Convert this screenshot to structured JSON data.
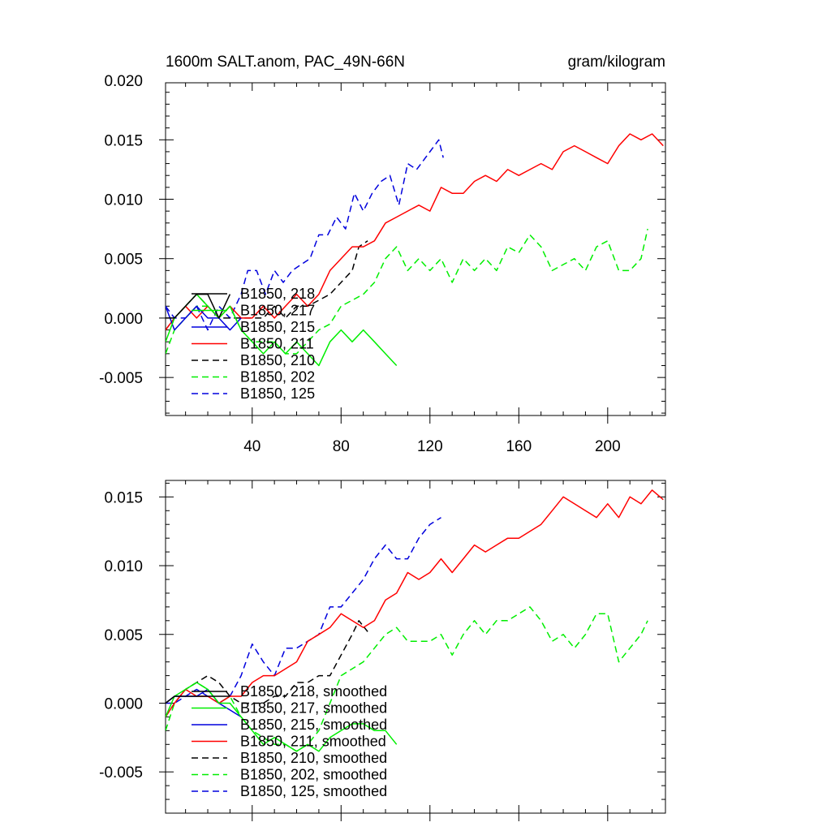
{
  "header": {
    "title_left": "1600m SALT.anom, PAC_49N-66N",
    "title_right": "gram/kilogram"
  },
  "styles": {
    "B1850, 218": {
      "color": "#000000",
      "dash": "solid"
    },
    "B1850, 217": {
      "color": "#00ee00",
      "dash": "solid"
    },
    "B1850, 215": {
      "color": "#0000dd",
      "dash": "solid"
    },
    "B1850, 211": {
      "color": "#ff0000",
      "dash": "solid"
    },
    "B1850, 210": {
      "color": "#000000",
      "dash": "dashed"
    },
    "B1850, 202": {
      "color": "#00ee00",
      "dash": "dashed"
    },
    "B1850, 125": {
      "color": "#0000dd",
      "dash": "dashed"
    }
  },
  "chart_data": [
    {
      "type": "line",
      "title": "1600m SALT.anom, PAC_49N-66N",
      "units": "gram/kilogram",
      "xlim": [
        1,
        226
      ],
      "ylim": [
        -0.0082,
        0.0198
      ],
      "xticks": [
        40,
        80,
        120,
        160,
        200
      ],
      "xtick_labels": [
        "40",
        "80",
        "120",
        "160",
        "200"
      ],
      "yticks": [
        -0.005,
        0.0,
        0.005,
        0.01,
        0.015,
        0.02
      ],
      "ytick_labels": [
        "-0.005",
        "0.000",
        "0.005",
        "0.010",
        "0.015",
        "0.020"
      ],
      "legend_labels": [
        "B1850, 218",
        "B1850, 217",
        "B1850, 215",
        "B1850, 211",
        "B1850, 210",
        "B1850, 202",
        "B1850, 125"
      ],
      "series": [
        {
          "name": "B1850, 125",
          "x": [
            1,
            5,
            10,
            15,
            20,
            25,
            30,
            35,
            38,
            42,
            46,
            50,
            54,
            58,
            62,
            66,
            70,
            74,
            78,
            82,
            86,
            90,
            94,
            98,
            102,
            106,
            110,
            114,
            118,
            122,
            124,
            126
          ],
          "values": [
            0.001,
            0.0,
            0.0,
            0.001,
            -0.001,
            0.001,
            0.0,
            0.002,
            0.004,
            0.004,
            0.002,
            0.004,
            0.003,
            0.004,
            0.0045,
            0.005,
            0.007,
            0.007,
            0.0085,
            0.0075,
            0.0105,
            0.009,
            0.0105,
            0.0115,
            0.012,
            0.0095,
            0.013,
            0.0125,
            0.0135,
            0.0145,
            0.015,
            0.0135
          ]
        },
        {
          "name": "B1850, 202",
          "x": [
            1,
            5,
            10,
            15,
            20,
            25,
            30,
            35,
            40,
            45,
            50,
            55,
            60,
            65,
            70,
            75,
            80,
            85,
            90,
            95,
            100,
            105,
            110,
            115,
            120,
            125,
            130,
            135,
            140,
            145,
            150,
            155,
            160,
            165,
            170,
            175,
            180,
            185,
            190,
            195,
            200,
            205,
            210,
            215,
            218
          ],
          "values": [
            -0.003,
            -0.001,
            0.0,
            0.001,
            0.001,
            0.0,
            0.001,
            -0.001,
            -0.002,
            -0.002,
            -0.002,
            -0.003,
            -0.003,
            -0.002,
            -0.001,
            -0.0005,
            0.001,
            0.0015,
            0.002,
            0.003,
            0.005,
            0.006,
            0.004,
            0.005,
            0.004,
            0.005,
            0.003,
            0.005,
            0.004,
            0.005,
            0.004,
            0.006,
            0.0055,
            0.007,
            0.006,
            0.004,
            0.0045,
            0.005,
            0.004,
            0.006,
            0.0065,
            0.004,
            0.004,
            0.005,
            0.0075
          ]
        },
        {
          "name": "B1850, 210",
          "x": [
            1,
            5,
            10,
            15,
            20,
            25,
            30,
            35,
            40,
            45,
            50,
            55,
            60,
            65,
            70,
            75,
            80,
            85,
            88,
            92
          ],
          "values": [
            -0.001,
            0.0,
            0.001,
            0.002,
            0.001,
            0.0,
            0.0,
            0.0,
            0.0,
            0.0,
            0.001,
            0.0,
            0.001,
            0.001,
            0.0015,
            0.002,
            0.003,
            0.004,
            0.006,
            0.0065
          ]
        },
        {
          "name": "B1850, 211",
          "x": [
            1,
            5,
            10,
            15,
            20,
            25,
            30,
            35,
            40,
            45,
            50,
            55,
            60,
            65,
            70,
            75,
            80,
            85,
            90,
            95,
            100,
            105,
            110,
            115,
            120,
            125,
            130,
            135,
            140,
            145,
            150,
            155,
            160,
            165,
            170,
            175,
            180,
            185,
            190,
            195,
            200,
            205,
            210,
            215,
            220,
            225
          ],
          "values": [
            -0.001,
            0.0,
            0.001,
            0.0,
            0.001,
            0.0,
            0.001,
            0.0,
            0.0,
            0.001,
            0.0,
            0.001,
            0.002,
            0.001,
            0.002,
            0.004,
            0.005,
            0.006,
            0.006,
            0.0065,
            0.008,
            0.0085,
            0.009,
            0.0095,
            0.009,
            0.011,
            0.0105,
            0.0105,
            0.0115,
            0.012,
            0.0115,
            0.0125,
            0.012,
            0.0125,
            0.013,
            0.0125,
            0.014,
            0.0145,
            0.014,
            0.0135,
            0.013,
            0.0145,
            0.0155,
            0.015,
            0.0155,
            0.0145
          ]
        },
        {
          "name": "B1850, 215",
          "x": [
            1,
            5,
            10,
            15,
            20,
            25,
            30,
            35
          ],
          "values": [
            0.001,
            -0.001,
            0.0,
            0.001,
            0.0,
            0.0,
            -0.001,
            0.0
          ]
        },
        {
          "name": "B1850, 217",
          "x": [
            1,
            5,
            10,
            15,
            20,
            25,
            30,
            35,
            40,
            45,
            50,
            55,
            60,
            65,
            70,
            75,
            80,
            85,
            90,
            95,
            100,
            105
          ],
          "values": [
            -0.002,
            0.0,
            0.001,
            0.002,
            0.001,
            0.0,
            0.001,
            -0.001,
            -0.002,
            -0.003,
            -0.002,
            -0.003,
            -0.002,
            -0.003,
            -0.004,
            -0.002,
            -0.001,
            -0.002,
            -0.001,
            -0.002,
            -0.003,
            -0.004
          ]
        },
        {
          "name": "B1850, 218",
          "x": [
            1,
            5,
            10,
            15,
            20,
            25,
            30
          ],
          "values": [
            0.0,
            0.0,
            0.001,
            0.002,
            0.002,
            0.0,
            0.002
          ]
        }
      ]
    },
    {
      "type": "line",
      "title": "",
      "xlim": [
        1,
        226
      ],
      "ylim": [
        -0.008,
        0.0162
      ],
      "xticks": [
        40,
        80,
        120,
        160,
        200
      ],
      "xtick_labels": [],
      "yticks": [
        -0.005,
        0.0,
        0.005,
        0.01,
        0.015
      ],
      "ytick_labels": [
        "-0.005",
        "0.000",
        "0.005",
        "0.010",
        "0.015"
      ],
      "legend_labels": [
        "B1850, 218, smoothed",
        "B1850, 217, smoothed",
        "B1850, 215, smoothed",
        "B1850, 211, smoothed",
        "B1850, 210, smoothed",
        "B1850, 202, smoothed",
        "B1850, 125, smoothed"
      ],
      "series": [
        {
          "name": "B1850, 125",
          "x": [
            1,
            5,
            10,
            15,
            20,
            25,
            30,
            35,
            40,
            45,
            50,
            55,
            60,
            65,
            70,
            75,
            80,
            85,
            90,
            95,
            100,
            105,
            110,
            115,
            120,
            125
          ],
          "values": [
            0.0,
            0.0,
            0.0005,
            0.001,
            0.0005,
            0.0,
            0.0005,
            0.002,
            0.0043,
            0.003,
            0.002,
            0.004,
            0.004,
            0.0045,
            0.005,
            0.007,
            0.007,
            0.008,
            0.009,
            0.0105,
            0.0115,
            0.0105,
            0.0105,
            0.012,
            0.013,
            0.0135
          ]
        },
        {
          "name": "B1850, 202",
          "x": [
            1,
            5,
            10,
            15,
            20,
            25,
            30,
            35,
            40,
            45,
            50,
            55,
            60,
            65,
            70,
            75,
            80,
            85,
            90,
            95,
            100,
            105,
            110,
            115,
            120,
            125,
            130,
            135,
            140,
            145,
            150,
            155,
            160,
            165,
            170,
            175,
            180,
            185,
            190,
            195,
            200,
            205,
            210,
            215,
            218
          ],
          "values": [
            -0.002,
            0.0,
            0.001,
            0.0015,
            0.001,
            0.0,
            0.0005,
            -0.001,
            -0.002,
            -0.0025,
            -0.003,
            -0.003,
            -0.0035,
            -0.003,
            -0.002,
            0.0,
            0.002,
            0.0025,
            0.003,
            0.004,
            0.005,
            0.0055,
            0.0045,
            0.0045,
            0.0045,
            0.005,
            0.0035,
            0.005,
            0.006,
            0.005,
            0.006,
            0.006,
            0.0065,
            0.007,
            0.006,
            0.0045,
            0.005,
            0.004,
            0.005,
            0.0065,
            0.0065,
            0.003,
            0.004,
            0.005,
            0.006
          ]
        },
        {
          "name": "B1850, 210",
          "x": [
            1,
            5,
            10,
            15,
            20,
            25,
            30,
            35,
            40,
            45,
            50,
            55,
            60,
            65,
            70,
            75,
            80,
            85,
            88,
            92
          ],
          "values": [
            -0.001,
            0.0,
            0.001,
            0.0015,
            0.002,
            0.0015,
            0.0005,
            0.0,
            0.0,
            0.0,
            0.0005,
            0.0005,
            0.0015,
            0.0015,
            0.002,
            0.002,
            0.0035,
            0.005,
            0.006,
            0.0052
          ]
        },
        {
          "name": "B1850, 211",
          "x": [
            1,
            5,
            10,
            15,
            20,
            25,
            30,
            35,
            40,
            45,
            50,
            55,
            60,
            65,
            70,
            75,
            80,
            85,
            90,
            95,
            100,
            105,
            110,
            115,
            120,
            125,
            130,
            135,
            140,
            145,
            150,
            155,
            160,
            165,
            170,
            175,
            180,
            185,
            190,
            195,
            200,
            205,
            210,
            215,
            220,
            225
          ],
          "values": [
            -0.001,
            0.0,
            0.001,
            0.0005,
            0.0005,
            0.0,
            0.0005,
            0.0005,
            0.0015,
            0.002,
            0.002,
            0.0025,
            0.003,
            0.0045,
            0.005,
            0.0055,
            0.0065,
            0.006,
            0.0055,
            0.006,
            0.0075,
            0.008,
            0.0095,
            0.009,
            0.0095,
            0.0105,
            0.0095,
            0.0105,
            0.0115,
            0.011,
            0.0115,
            0.012,
            0.012,
            0.0125,
            0.013,
            0.014,
            0.015,
            0.0145,
            0.014,
            0.0135,
            0.0145,
            0.0135,
            0.015,
            0.0145,
            0.0155,
            0.0148
          ]
        },
        {
          "name": "B1850, 215",
          "x": [
            1,
            5,
            10,
            15,
            20,
            25,
            30,
            35
          ],
          "values": [
            0.0,
            0.0005,
            0.0005,
            0.0005,
            0.001,
            0.0,
            -0.0005,
            -0.001
          ]
        },
        {
          "name": "B1850, 217",
          "x": [
            1,
            5,
            10,
            15,
            20,
            25,
            30,
            35,
            40,
            45,
            50,
            55,
            60,
            65,
            70,
            75,
            80,
            85,
            90,
            95,
            100,
            105
          ],
          "values": [
            -0.001,
            0.0005,
            0.001,
            0.0015,
            0.001,
            0.0,
            0.0,
            -0.001,
            -0.002,
            -0.003,
            -0.0025,
            -0.003,
            -0.0035,
            -0.003,
            -0.0035,
            -0.0025,
            -0.002,
            -0.0015,
            -0.0015,
            -0.002,
            -0.002,
            -0.003
          ]
        },
        {
          "name": "B1850, 218",
          "x": [
            1,
            5,
            10,
            15,
            20,
            25,
            30
          ],
          "values": [
            0.0,
            0.0005,
            0.0005,
            0.0005,
            0.0005,
            0.0005,
            0.0005
          ]
        }
      ]
    }
  ]
}
